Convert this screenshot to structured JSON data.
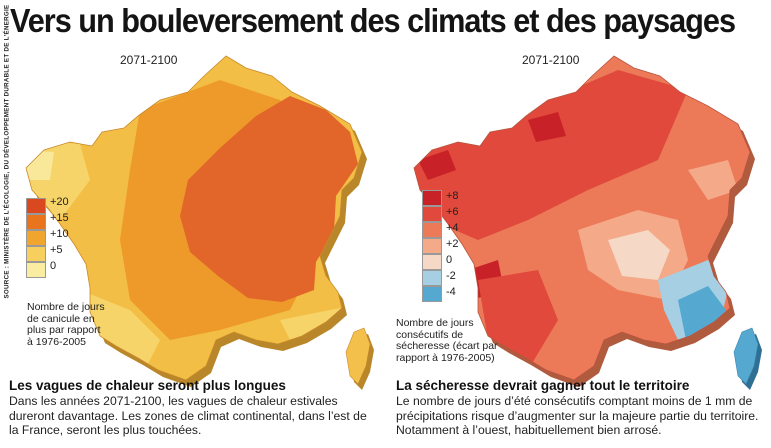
{
  "headline": "Vers un bouleversement des climats et des paysages",
  "source": "SOURCE : MINISTÈRE DE L'ÉCOLOGIE, DU DÉVELOPPEMENT DURABLE ET DE L'ÉNERGIE",
  "maps": [
    {
      "period": "2071-2100",
      "legend": [
        {
          "label": "+20",
          "color": "#d9481f"
        },
        {
          "label": "+15",
          "color": "#e8741e"
        },
        {
          "label": "+10",
          "color": "#f0a52e"
        },
        {
          "label": "+5",
          "color": "#f6cf5e"
        },
        {
          "label": "0",
          "color": "#faeca0"
        }
      ],
      "legend_caption": "Nombre de jours de canicule en plus par rapport à 1976-2005",
      "section_title": "Les vagues de chaleur seront plus longues",
      "section_text": "Dans les années 2071-2100, les vagues de chaleur estivales dureront davantage. Les zones de climat continental, dans l’est de la France, seront les plus touchées."
    },
    {
      "period": "2071-2100",
      "legend": [
        {
          "label": "+8",
          "color": "#c82128"
        },
        {
          "label": "+6",
          "color": "#e0493b"
        },
        {
          "label": "+4",
          "color": "#ec7a58"
        },
        {
          "label": "+2",
          "color": "#f4a988"
        },
        {
          "label": "0",
          "color": "#f5d8c6"
        },
        {
          "label": "-2",
          "color": "#a6cfe3"
        },
        {
          "label": "-4",
          "color": "#55a9d1"
        }
      ],
      "legend_caption": "Nombre de jours consécutifs de sécheresse (écart par rapport à 1976-2005)",
      "section_title": "La sécheresse devrait gagner tout le territoire",
      "section_text": "Le nombre de jours d’été consécutifs comptant moins de 1 mm de précipitations risque d’augmenter sur la majeure partie du territoire. Notamment à l’ouest, habituellement bien arrosé."
    }
  ]
}
